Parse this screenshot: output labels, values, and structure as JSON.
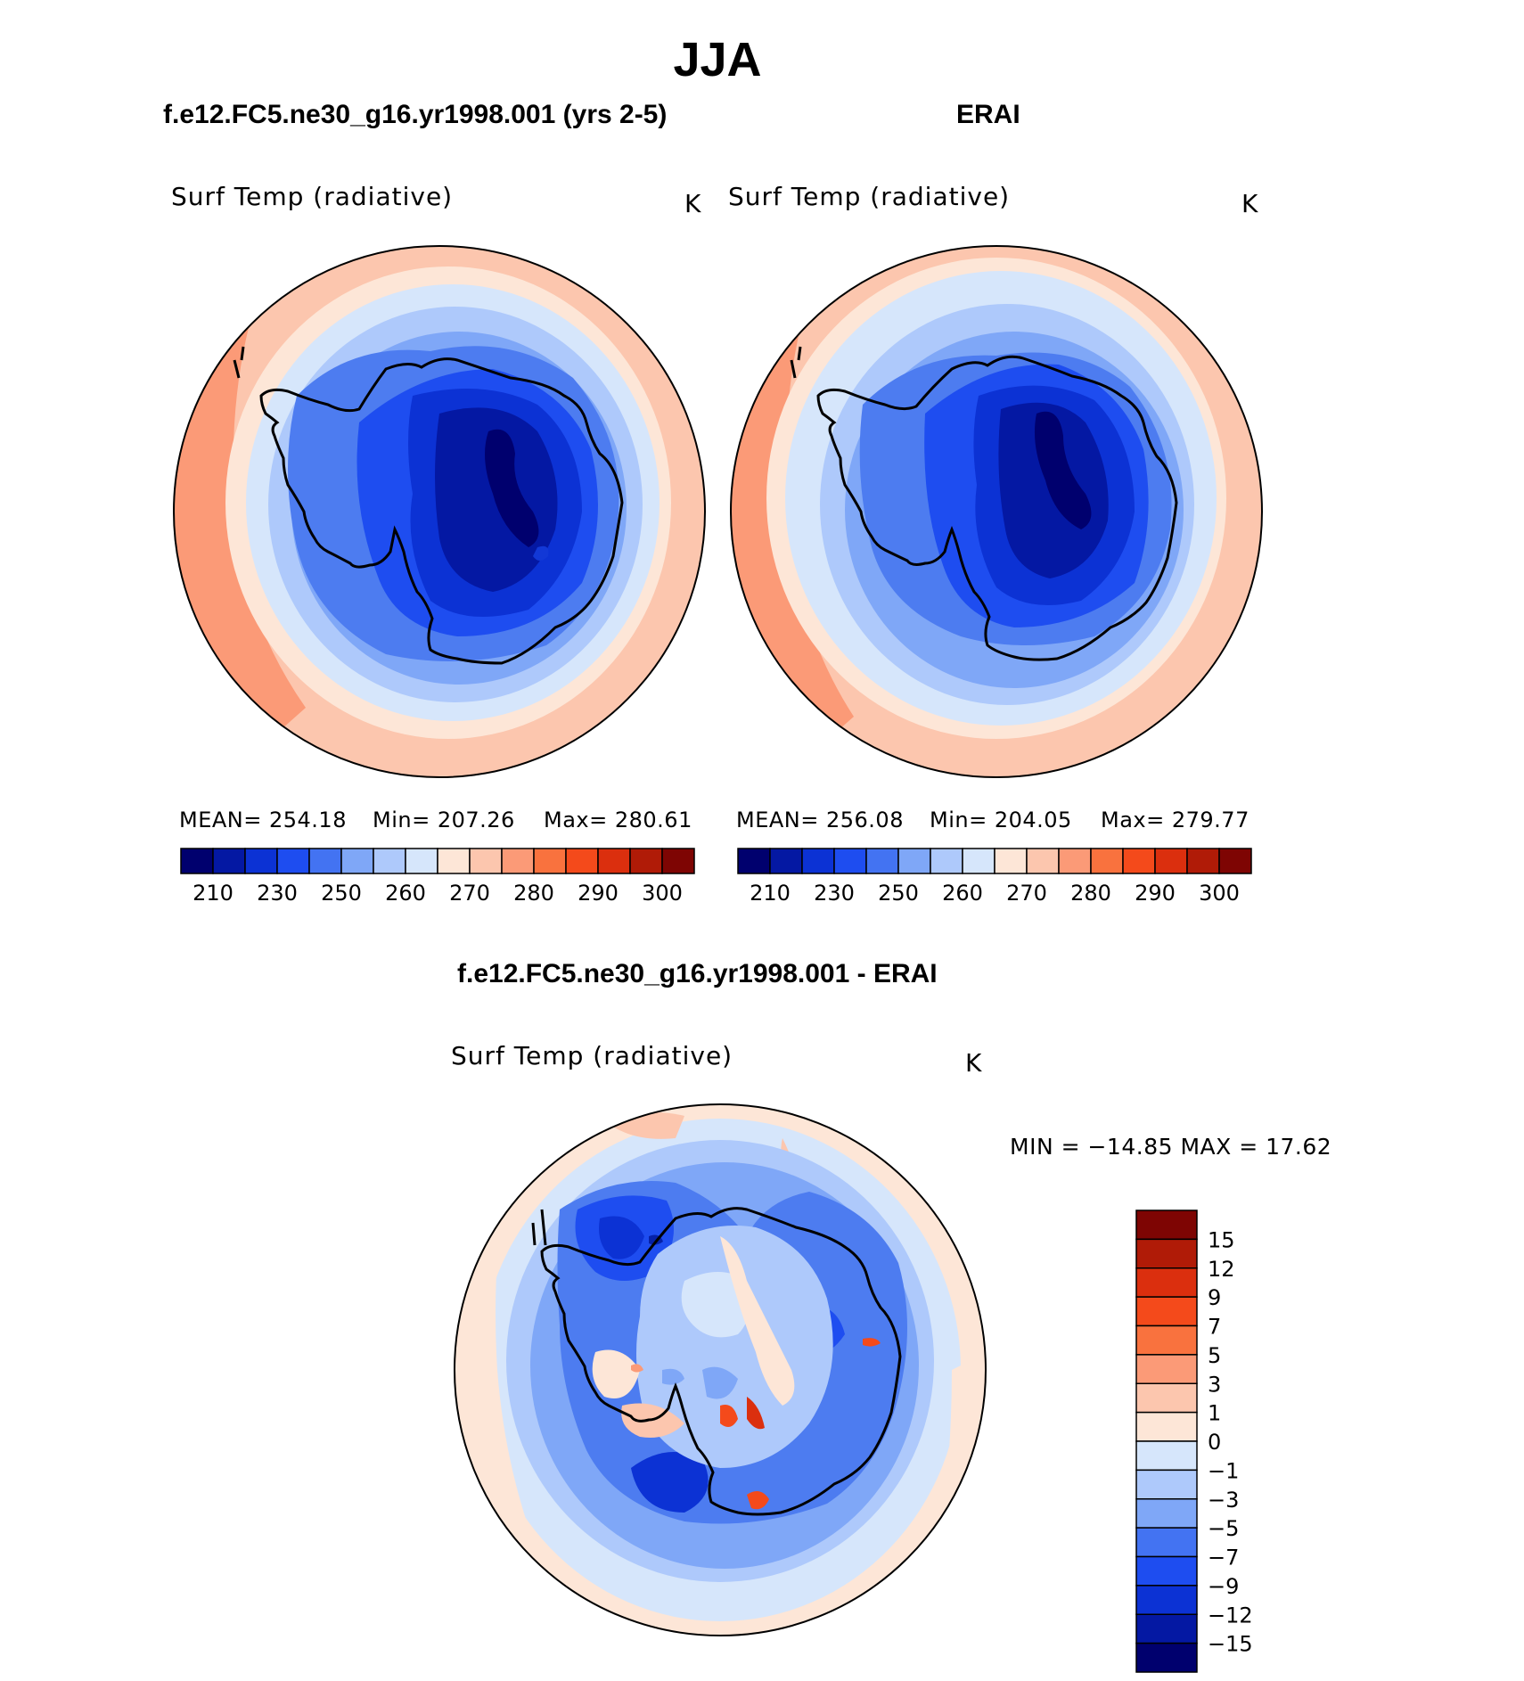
{
  "figure": {
    "title": "JJA",
    "colors": {
      "ocean_warm": "#fb9a77",
      "ocean_mid": "#fcc6ae",
      "ice_edge": "#fde6d7",
      "sea_ice": "#d6e6fb",
      "cold1": "#aec9fb",
      "cold2": "#7fa7f7",
      "cold3": "#4d7cf0",
      "cold4": "#2a56e8",
      "cold5": "#1238d6",
      "cold6": "#0621a8",
      "coast": "#000000"
    }
  },
  "panels": {
    "model": {
      "title": "f.e12.FC5.ne30_g16.yr1998.001 (yrs 2-5)",
      "variable": "Surf Temp (radiative)",
      "units": "K",
      "stats_mean": "MEAN=  254.18",
      "stats_min": "Min=  207.26",
      "stats_max": "Max=  280.61"
    },
    "obs": {
      "title": "ERAI",
      "variable": "Surf Temp (radiative)",
      "units": "K",
      "stats_mean": "MEAN=  256.08",
      "stats_min": "Min=  204.05",
      "stats_max": "Max=  279.77"
    },
    "diff": {
      "title": "f.e12.FC5.ne30_g16.yr1998.001 - ERAI",
      "variable": "Surf Temp (radiative)",
      "units": "K",
      "stats": "MIN  =  −14.85  MAX  =    17.62"
    }
  },
  "colorbar_abs": {
    "colors": [
      "#00006e",
      "#0418a3",
      "#0c32d4",
      "#1e4df0",
      "#4373f2",
      "#7fa7f7",
      "#aec9fb",
      "#d6e6fb",
      "#fde6d7",
      "#fcc6ae",
      "#fb9a77",
      "#f9723e",
      "#f44a1b",
      "#db2f0e",
      "#b01b07",
      "#7e0503"
    ],
    "labels": [
      "210",
      "230",
      "250",
      "260",
      "270",
      "280",
      "290",
      "300"
    ]
  },
  "colorbar_diff": {
    "colors": [
      "#00006e",
      "#0418a3",
      "#0c32d4",
      "#1e4df0",
      "#4373f2",
      "#7fa7f7",
      "#aec9fb",
      "#d6e6fb",
      "#fde6d7",
      "#fcc6ae",
      "#fb9a77",
      "#f9723e",
      "#f44a1b",
      "#db2f0e",
      "#b01b07",
      "#7e0503"
    ],
    "labels": [
      "15",
      "12",
      "9",
      "7",
      "5",
      "3",
      "1",
      "0",
      "−1",
      "−3",
      "−5",
      "−7",
      "−9",
      "−12",
      "−15"
    ]
  }
}
